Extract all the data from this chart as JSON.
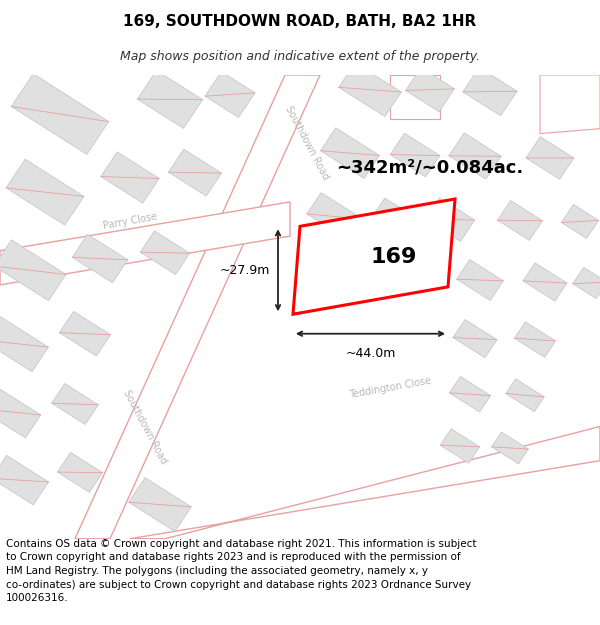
{
  "title_line1": "169, SOUTHDOWN ROAD, BATH, BA2 1HR",
  "title_line2": "Map shows position and indicative extent of the property.",
  "footer_text": "Contains OS data © Crown copyright and database right 2021. This information is subject\nto Crown copyright and database rights 2023 and is reproduced with the permission of\nHM Land Registry. The polygons (including the associated geometry, namely x, y\nco-ordinates) are subject to Crown copyright and database rights 2023 Ordnance Survey\n100026316.",
  "area_label": "~342m²/~0.084ac.",
  "property_number": "169",
  "width_label": "~44.0m",
  "height_label": "~27.9m",
  "map_bg": "#eeeeee",
  "road_fill": "#ffffff",
  "building_fill": "#e0e0e0",
  "building_edge": "#c8c8c8",
  "road_stroke": "#e8a0a0",
  "property_stroke": "#ff0000",
  "property_fill": "#ffffff",
  "dim_color": "#222222",
  "road_label_color": "#b8b8b8",
  "title_fontsize": 11,
  "subtitle_fontsize": 9,
  "area_fontsize": 13,
  "number_fontsize": 16,
  "footer_fontsize": 7.5,
  "road_label_fontsize": 7
}
